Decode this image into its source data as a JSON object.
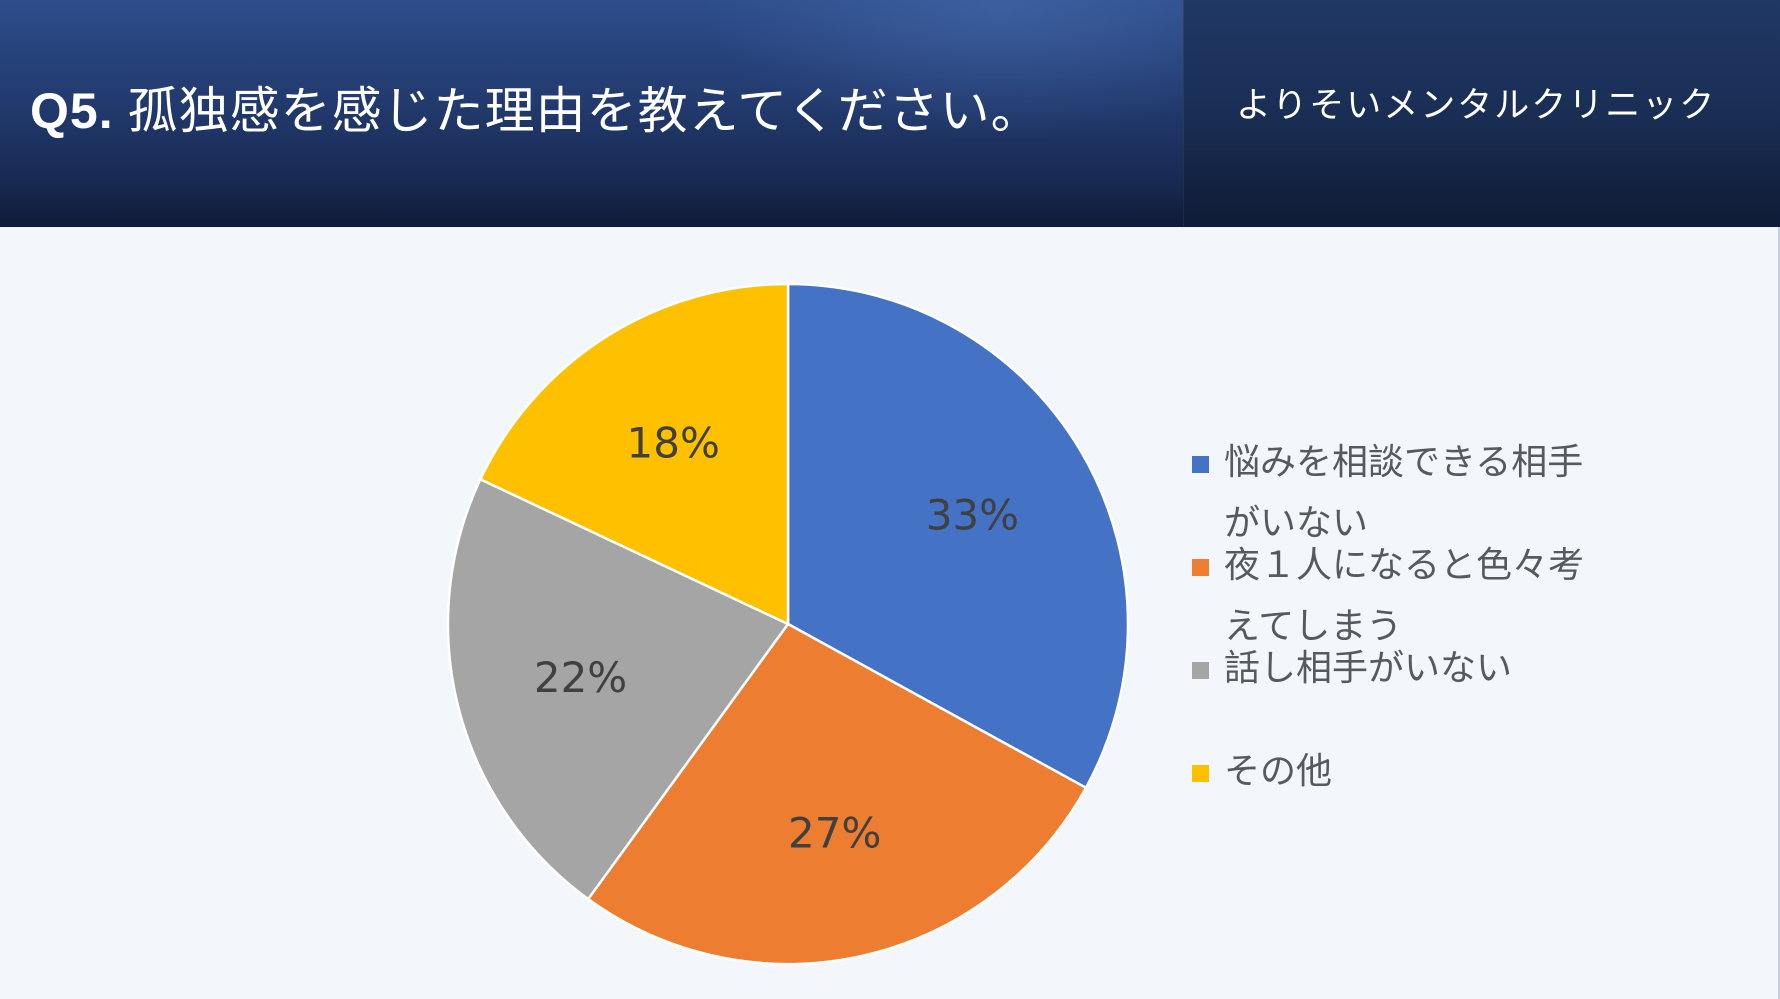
{
  "header": {
    "question_number": "Q5.",
    "question_text": "孤独感を感じた理由を教えてください。",
    "clinic_name": "よりそいメンタルクリニック"
  },
  "chart_data": {
    "type": "pie",
    "start_angle_deg": 0,
    "direction": "clockwise",
    "legend_position": "right",
    "slices": [
      {
        "label": "悩みを相談できる相手がいない",
        "value": 33,
        "data_label": "33%",
        "color": "#4472c4"
      },
      {
        "label": "夜１人になると色々考えてしまう",
        "value": 27,
        "data_label": "27%",
        "color": "#ed7d31"
      },
      {
        "label": "話し相手がいない",
        "value": 22,
        "data_label": "22%",
        "color": "#a5a5a5"
      },
      {
        "label": "その他",
        "value": 18,
        "data_label": "18%",
        "color": "#ffc000"
      }
    ]
  },
  "colors": {
    "label_text": "#404040",
    "legend_text": "#555a60",
    "background": "#f3f6fa"
  }
}
